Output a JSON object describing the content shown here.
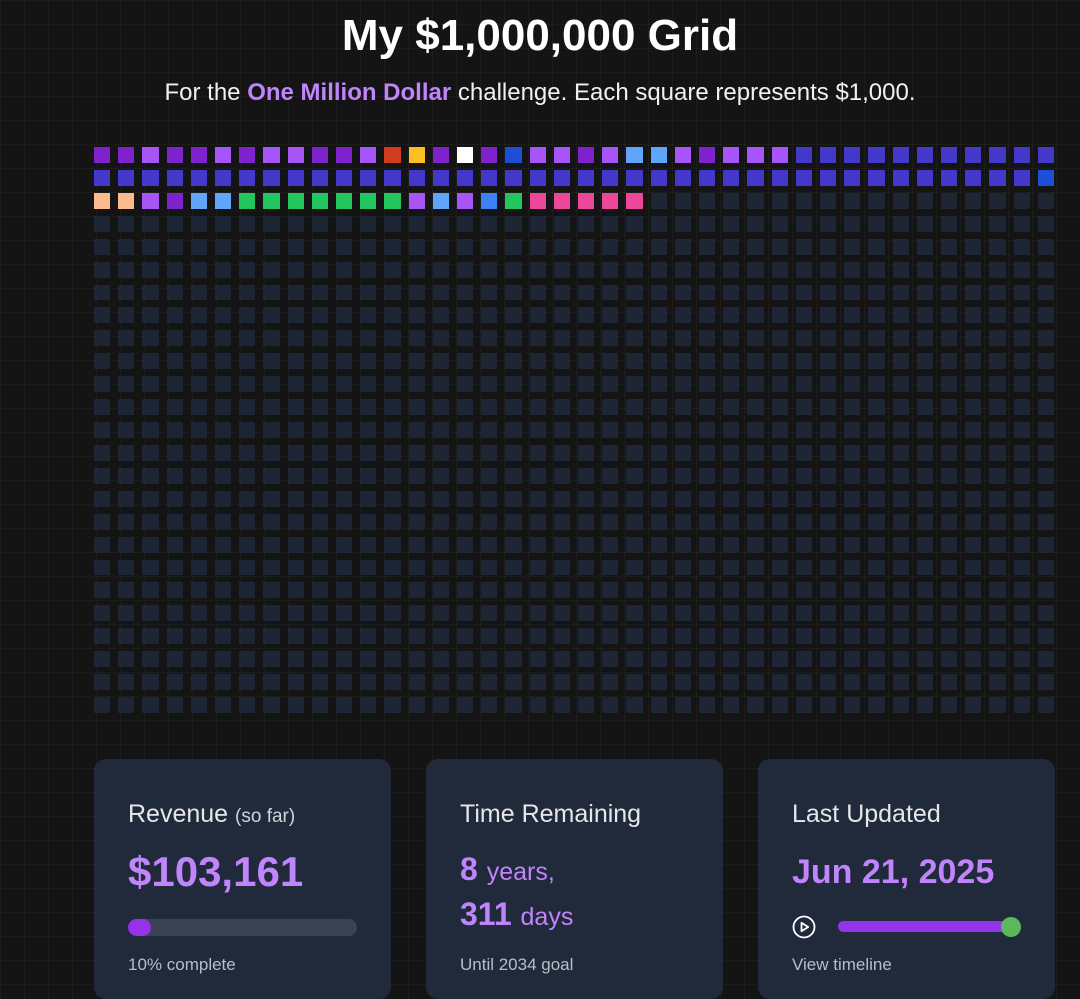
{
  "header": {
    "title": "My $1,000,000 Grid",
    "subtitle_prefix": "For the",
    "subtitle_highlight": "One Million Dollar",
    "subtitle_suffix": "challenge. Each square represents $1,000."
  },
  "grid": {
    "columns": 40,
    "rows": 25,
    "empty_color": "#1e2636",
    "filled_squares": [
      "#7e22ce",
      "#7e22ce",
      "#a855f7",
      "#7e22ce",
      "#7e22ce",
      "#a855f7",
      "#7e22ce",
      "#a855f7",
      "#a855f7",
      "#7e22ce",
      "#7e22ce",
      "#a855f7",
      "#d03c1f",
      "#fbbf24",
      "#7e22ce",
      "#ffffff",
      "#7e22ce",
      "#1d4ed8",
      "#a855f7",
      "#a855f7",
      "#7e22ce",
      "#a855f7",
      "#60a5fa",
      "#60a5fa",
      "#a855f7",
      "#7e22ce",
      "#a855f7",
      "#a855f7",
      "#a855f7",
      "#4338ca",
      "#4338ca",
      "#4338ca",
      "#4338ca",
      "#4338ca",
      "#4338ca",
      "#4338ca",
      "#4338ca",
      "#4338ca",
      "#4338ca",
      "#4338ca",
      "#4338ca",
      "#4338ca",
      "#4338ca",
      "#4338ca",
      "#4338ca",
      "#4338ca",
      "#4338ca",
      "#4338ca",
      "#4338ca",
      "#4338ca",
      "#4338ca",
      "#4338ca",
      "#4338ca",
      "#4338ca",
      "#4338ca",
      "#4338ca",
      "#4338ca",
      "#4338ca",
      "#4338ca",
      "#4338ca",
      "#4338ca",
      "#4338ca",
      "#4338ca",
      "#4338ca",
      "#4338ca",
      "#4338ca",
      "#4338ca",
      "#4338ca",
      "#4338ca",
      "#4338ca",
      "#4338ca",
      "#4338ca",
      "#4338ca",
      "#4338ca",
      "#4338ca",
      "#4338ca",
      "#4338ca",
      "#4338ca",
      "#4338ca",
      "#1d4ed8",
      "#fdba8c",
      "#fdba8c",
      "#a855f7",
      "#7e22ce",
      "#60a5fa",
      "#60a5fa",
      "#22c55e",
      "#22c55e",
      "#22c55e",
      "#22c55e",
      "#22c55e",
      "#22c55e",
      "#22c55e",
      "#a855f7",
      "#60a5fa",
      "#a855f7",
      "#3b82f6",
      "#22c55e",
      "#ec4899",
      "#ec4899",
      "#ec4899",
      "#ec4899",
      "#ec4899"
    ]
  },
  "cards": {
    "revenue": {
      "title": "Revenue",
      "title_note": "(so far)",
      "value": "$103,161",
      "progress": 0.1,
      "footnote": "10% complete"
    },
    "time": {
      "title": "Time Remaining",
      "years_value": "8",
      "years_unit": "years,",
      "days_value": "311",
      "days_unit": "days",
      "footnote": "Until 2034 goal"
    },
    "updated": {
      "title": "Last Updated",
      "value": "Jun 21, 2025",
      "timeline_position": 1.0,
      "footnote": "View timeline",
      "play_icon": "play-circle-icon"
    }
  },
  "colors": {
    "accent": "#c084fc",
    "progress": "#9333ea",
    "thumb": "#5cb85c",
    "card": "#212a3a"
  }
}
